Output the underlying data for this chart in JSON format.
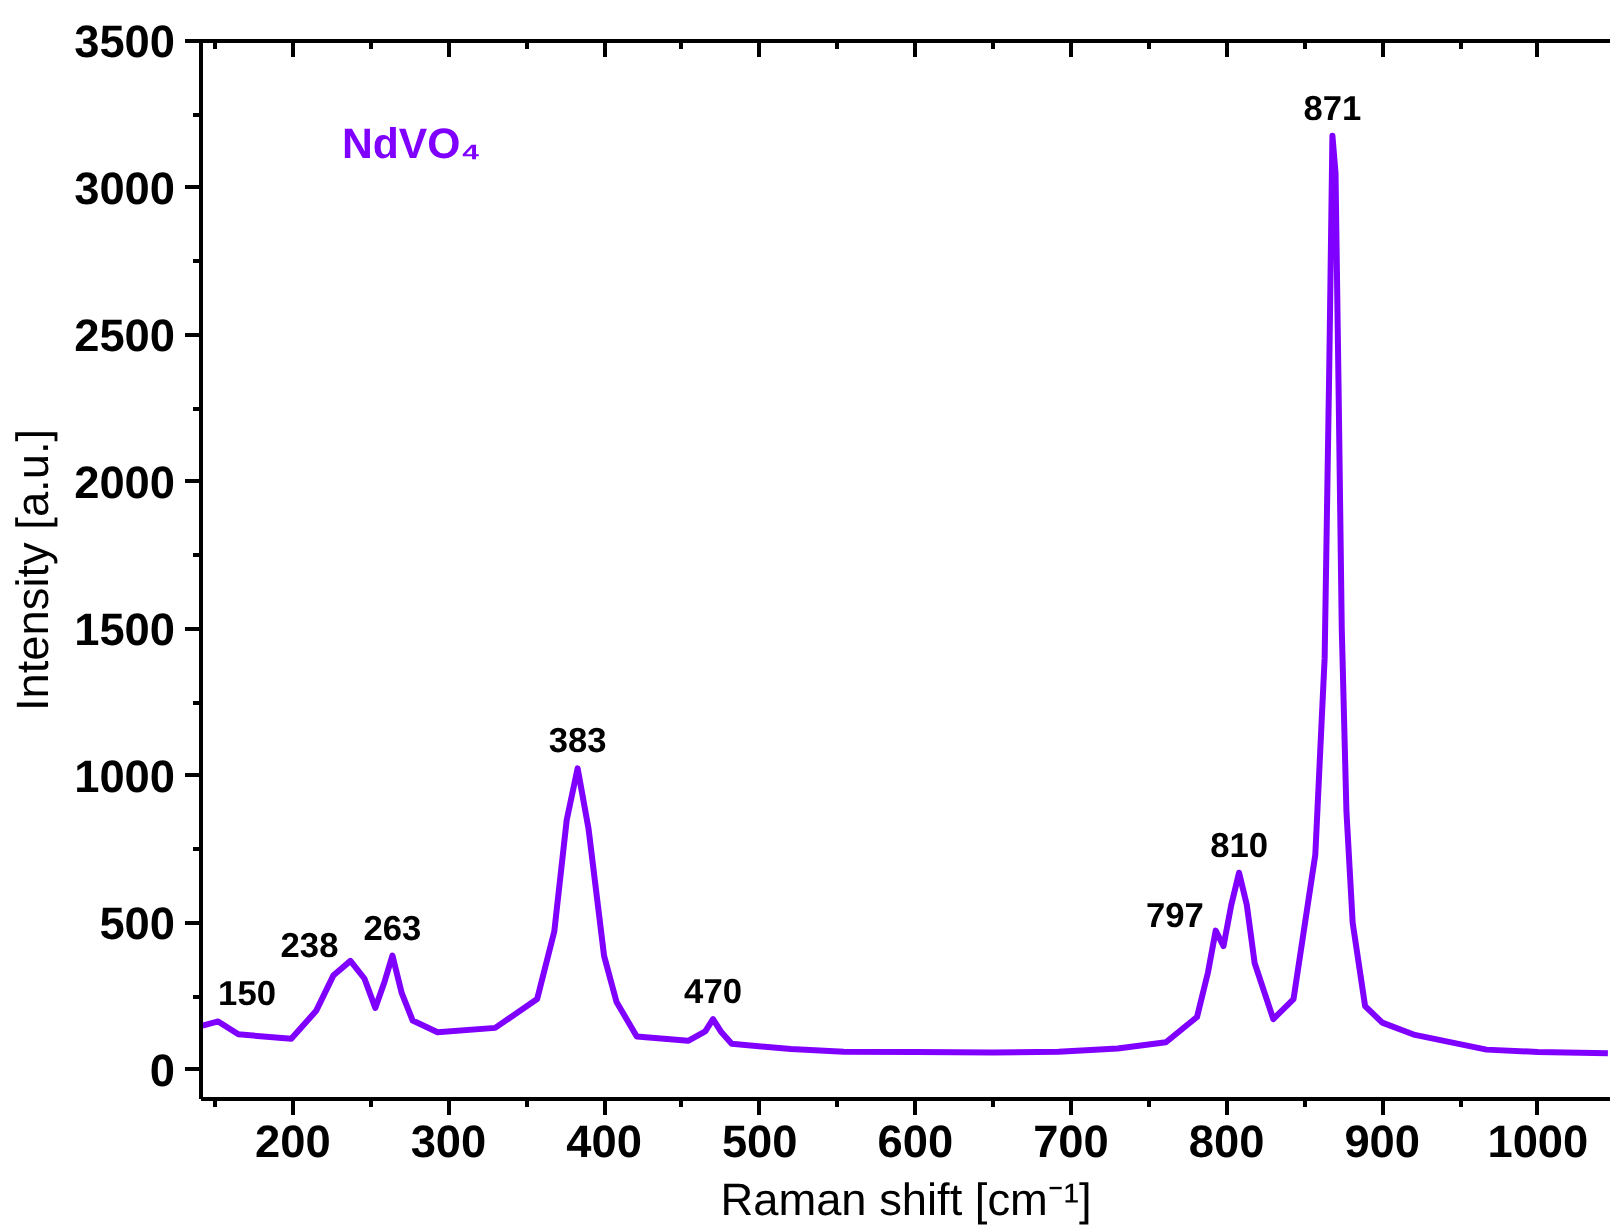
{
  "chart_data": {
    "type": "line",
    "xlabel": "Raman shift [cm⁻¹]",
    "ylabel": "Intensity [a.u.]",
    "xlim": [
      141,
      1047
    ],
    "ylim": [
      -100,
      3500
    ],
    "xticks": [
      200,
      300,
      400,
      500,
      600,
      700,
      800,
      900,
      1000
    ],
    "yticks": [
      0,
      500,
      1000,
      1500,
      2000,
      2500,
      3000,
      3500
    ],
    "grid": false,
    "legend": false,
    "marker": "none",
    "line_style": "solid",
    "series": [
      {
        "name": "NdVO₄",
        "color": "#8000ff",
        "x": [
          142,
          152,
          165,
          199,
          215,
          226,
          237,
          246,
          253,
          259,
          264,
          270,
          277,
          293,
          330,
          357,
          368,
          376,
          383,
          390,
          400,
          408,
          421,
          454,
          465,
          470,
          475,
          482,
          520,
          554,
          600,
          650,
          692,
          730,
          761,
          781,
          788,
          793,
          798,
          803,
          808,
          813,
          818,
          830,
          843,
          857,
          863,
          866,
          868,
          870,
          872,
          874,
          877,
          881,
          889,
          900,
          921,
          967,
          1000,
          1045
        ],
        "values": [
          150,
          164,
          120,
          105,
          200,
          320,
          370,
          310,
          210,
          300,
          388,
          260,
          167,
          127,
          142,
          240,
          470,
          850,
          1025,
          820,
          387,
          230,
          113,
          98,
          130,
          172,
          130,
          88,
          70,
          61,
          60,
          58,
          61,
          72,
          93,
          179,
          330,
          473,
          420,
          560,
          670,
          560,
          363,
          172,
          240,
          731,
          1400,
          2400,
          3178,
          3050,
          2300,
          1500,
          879,
          500,
          216,
          160,
          118,
          68,
          60,
          56
        ]
      }
    ],
    "annotations": [
      {
        "text": "150",
        "x": 152,
        "y": 164
      },
      {
        "text": "238",
        "x": 237,
        "y": 370
      },
      {
        "text": "263",
        "x": 264,
        "y": 388
      },
      {
        "text": "383",
        "x": 383,
        "y": 1025
      },
      {
        "text": "470",
        "x": 470,
        "y": 172
      },
      {
        "text": "797",
        "x": 793,
        "y": 473
      },
      {
        "text": "810",
        "x": 808,
        "y": 670
      },
      {
        "text": "871",
        "x": 868,
        "y": 3178
      }
    ]
  }
}
